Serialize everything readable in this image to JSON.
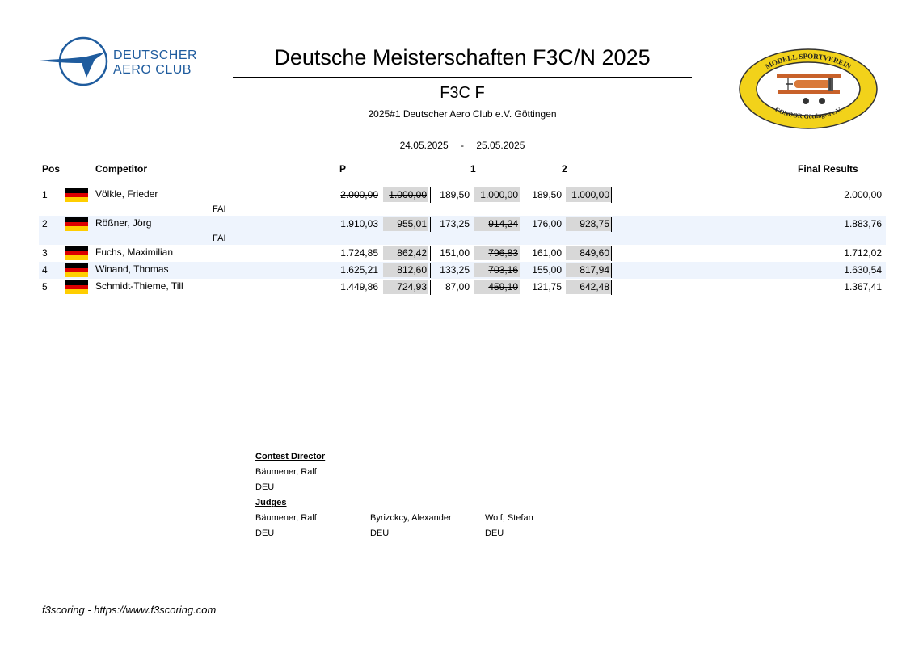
{
  "header": {
    "org_line1": "DEUTSCHER",
    "org_line2": "AERO CLUB",
    "title": "Deutsche Meisterschaften F3C/N 2025",
    "class_name": "F3C F",
    "contest": "2025#1 Deutscher Aero Club e.V. Göttingen",
    "date_from": "24.05.2025",
    "date_sep": "-",
    "date_to": "25.05.2025",
    "club_logo_top": "MODELL SPORTVEREIN",
    "club_logo_bottom": "CONDOR Göttingen e.V."
  },
  "table": {
    "headers": {
      "pos": "Pos",
      "competitor": "Competitor",
      "p": "P",
      "r1": "1",
      "r2": "2",
      "final": "Final Results"
    },
    "rows": [
      {
        "pos": "1",
        "name": "Völkle, Frieder",
        "fai": "FAI",
        "p_raw": "2.000,00",
        "p_norm": "1.000,00",
        "p_struck": true,
        "r1_raw": "189,50",
        "r1_norm": "1.000,00",
        "r1_struck": false,
        "r2_raw": "189,50",
        "r2_norm": "1.000,00",
        "r2_struck": false,
        "final": "2.000,00",
        "country": "DEU"
      },
      {
        "pos": "2",
        "name": "Rößner, Jörg",
        "fai": "FAI",
        "p_raw": "1.910,03",
        "p_norm": "955,01",
        "p_struck": false,
        "r1_raw": "173,25",
        "r1_norm": "914,24",
        "r1_struck": true,
        "r2_raw": "176,00",
        "r2_norm": "928,75",
        "r2_struck": false,
        "final": "1.883,76",
        "country": "DEU"
      },
      {
        "pos": "3",
        "name": "Fuchs, Maximilian",
        "fai": "",
        "p_raw": "1.724,85",
        "p_norm": "862,42",
        "p_struck": false,
        "r1_raw": "151,00",
        "r1_norm": "796,83",
        "r1_struck": true,
        "r2_raw": "161,00",
        "r2_norm": "849,60",
        "r2_struck": false,
        "final": "1.712,02",
        "country": "DEU"
      },
      {
        "pos": "4",
        "name": "Winand, Thomas",
        "fai": "",
        "p_raw": "1.625,21",
        "p_norm": "812,60",
        "p_struck": false,
        "r1_raw": "133,25",
        "r1_norm": "703,16",
        "r1_struck": true,
        "r2_raw": "155,00",
        "r2_norm": "817,94",
        "r2_struck": false,
        "final": "1.630,54",
        "country": "DEU"
      },
      {
        "pos": "5",
        "name": "Schmidt-Thieme, Till",
        "fai": "",
        "p_raw": "1.449,86",
        "p_norm": "724,93",
        "p_struck": false,
        "r1_raw": "87,00",
        "r1_norm": "459,10",
        "r1_struck": true,
        "r2_raw": "121,75",
        "r2_norm": "642,48",
        "r2_struck": false,
        "final": "1.367,41",
        "country": "DEU"
      }
    ]
  },
  "officials": {
    "director_heading": "Contest Director",
    "director": {
      "name": "Bäumener, Ralf",
      "country": "DEU"
    },
    "judges_heading": "Judges",
    "judges": [
      {
        "name": "Bäumener, Ralf",
        "country": "DEU"
      },
      {
        "name": "Byrizckcy, Alexander",
        "country": "DEU"
      },
      {
        "name": "Wolf, Stefan",
        "country": "DEU"
      }
    ]
  },
  "footer": "f3scoring - https://www.f3scoring.com",
  "colors": {
    "dac_blue": "#1f5c9e",
    "alt_row": "#eef4fd",
    "score_shade": "#d8d8d8",
    "logo_yellow": "#f2d21a"
  },
  "icons": [
    "dac-logo-icon",
    "condor-club-logo-icon",
    "flag-germany-icon"
  ]
}
